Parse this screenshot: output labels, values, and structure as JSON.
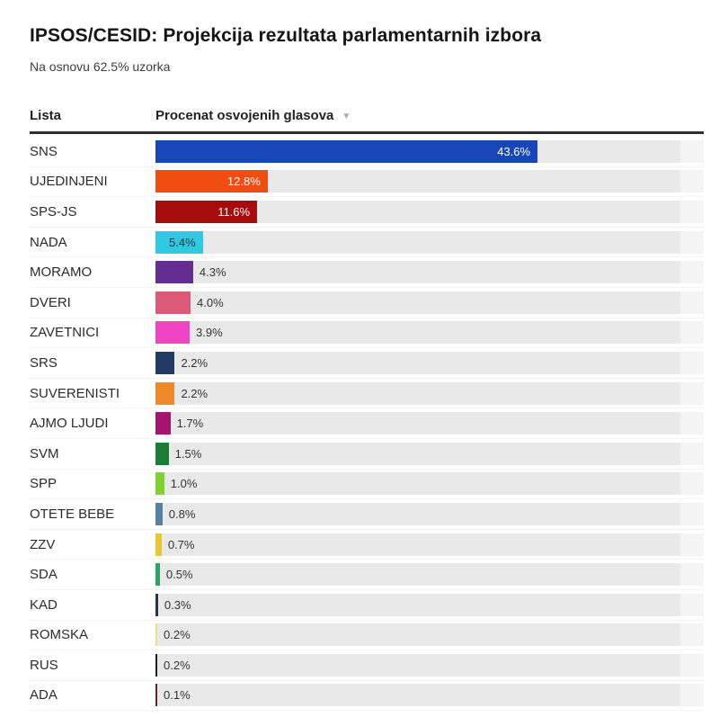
{
  "header": {
    "title": "IPSOS/CESID: Projekcija rezultata parlamentarnih izbora",
    "subtitle": "Na osnovu 62.5% uzorka"
  },
  "table": {
    "col_list_label": "Lista",
    "col_value_label": "Procenat osvojenih glasova",
    "sort_icon": "▼",
    "sort_state": "descending"
  },
  "chart_data": {
    "type": "bar",
    "orientation": "horizontal",
    "title": "IPSOS/CESID: Projekcija rezultata parlamentarnih izbora",
    "subtitle": "Na osnovu 62.5% uzorka",
    "columns": [
      "Lista",
      "Procenat osvojenih glasova"
    ],
    "value_suffix": "%",
    "xlim": [
      0,
      62.6
    ],
    "grid": false,
    "legend": "none",
    "sort": "descending",
    "track_color": "#e9e9e9",
    "track_tail_color": "#f4f4f4",
    "categories": [
      "SNS",
      "UJEDINJENI",
      "SPS-JS",
      "NADA",
      "MORAMO",
      "DVERI",
      "ZAVETNICI",
      "SRS",
      "SUVERENISTI",
      "AJMO LJUDI",
      "SVM",
      "SPP",
      "OTETE BEBE",
      "ZZV",
      "SDA",
      "KAD",
      "ROMSKA",
      "RUS",
      "ADA"
    ],
    "values": [
      43.6,
      12.8,
      11.6,
      5.4,
      4.3,
      4.0,
      3.9,
      2.2,
      2.2,
      1.7,
      1.5,
      1.0,
      0.8,
      0.7,
      0.5,
      0.3,
      0.2,
      0.2,
      0.1
    ],
    "value_labels": [
      "43.6%",
      "12.8%",
      "11.6%",
      "5.4%",
      "4.3%",
      "4.0%",
      "3.9%",
      "2.2%",
      "2.2%",
      "1.7%",
      "1.5%",
      "1.0%",
      "0.8%",
      "0.7%",
      "0.5%",
      "0.3%",
      "0.2%",
      "0.2%",
      "0.1%"
    ],
    "colors": [
      "#1846b8",
      "#f04e11",
      "#a80d0d",
      "#2fc9e1",
      "#662d91",
      "#dd5b78",
      "#ef44c5",
      "#1f3a63",
      "#ef8a2b",
      "#a3156f",
      "#1d7c35",
      "#7ed32f",
      "#5581a8",
      "#eec52f",
      "#2aa45e",
      "#22384a",
      "#e9e27a",
      "#1d1d1b",
      "#6b2321"
    ],
    "value_label_inside": [
      true,
      true,
      true,
      true,
      false,
      false,
      false,
      false,
      false,
      false,
      false,
      false,
      false,
      false,
      false,
      false,
      false,
      false,
      false
    ],
    "inside_label_colors": [
      "#ffffff",
      "#ffffff",
      "#ffffff",
      "#333333"
    ]
  }
}
